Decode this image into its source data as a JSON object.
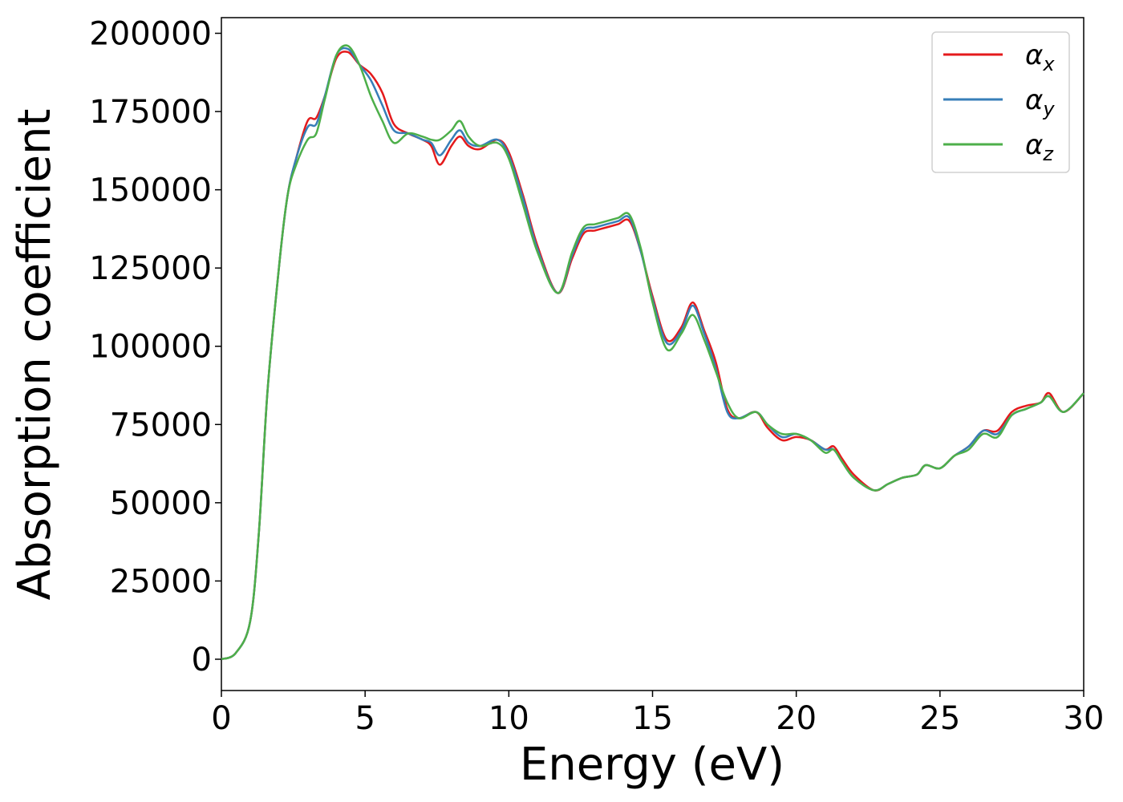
{
  "chart_data": {
    "type": "line",
    "title": "",
    "xlabel": "Energy (eV)",
    "ylabel": "Absorption coefficient",
    "xlim": [
      0,
      30
    ],
    "ylim": [
      -10000,
      205000
    ],
    "x_ticks": [
      "0",
      "5",
      "10",
      "15",
      "20",
      "25",
      "30"
    ],
    "y_ticks": [
      "0",
      "25000",
      "50000",
      "75000",
      "100000",
      "125000",
      "150000",
      "175000",
      "200000"
    ],
    "grid": false,
    "legend_position": "top-right",
    "x": [
      0,
      0.5,
      1.0,
      1.3,
      1.6,
      2.0,
      2.3,
      2.6,
      3.0,
      3.3,
      3.6,
      4.0,
      4.4,
      4.8,
      5.2,
      5.6,
      6.0,
      6.5,
      7.0,
      7.3,
      7.6,
      8.0,
      8.3,
      8.6,
      9.0,
      9.6,
      10.0,
      10.5,
      11.0,
      11.7,
      12.2,
      12.6,
      13.0,
      13.4,
      13.8,
      14.2,
      14.6,
      15.0,
      15.5,
      16.0,
      16.4,
      16.8,
      17.2,
      17.6,
      18.0,
      18.6,
      19.0,
      19.5,
      20.0,
      20.5,
      21.0,
      21.3,
      21.6,
      22.0,
      22.7,
      23.2,
      23.7,
      24.2,
      24.5,
      25.0,
      25.5,
      26.0,
      26.5,
      27.0,
      27.5,
      28.0,
      28.5,
      28.8,
      29.3,
      30.0
    ],
    "series": [
      {
        "name": "α",
        "subscript": "x",
        "color": "#e41a1c",
        "values": [
          0,
          2000,
          12000,
          40000,
          85000,
          125000,
          148000,
          160000,
          172000,
          173000,
          180000,
          192000,
          194000,
          190000,
          187000,
          181000,
          171000,
          168000,
          166000,
          164000,
          158000,
          164000,
          167000,
          164000,
          163000,
          166000,
          162000,
          148000,
          132000,
          117000,
          128000,
          136000,
          137000,
          138000,
          139000,
          140000,
          130000,
          116000,
          102000,
          106000,
          114000,
          105000,
          95000,
          80000,
          77000,
          79000,
          74000,
          70000,
          71000,
          70000,
          67000,
          68000,
          64000,
          59000,
          54000,
          56000,
          58000,
          59000,
          62000,
          61000,
          65000,
          68000,
          73000,
          73000,
          79000,
          81000,
          82000,
          85000,
          79000,
          85000
        ]
      },
      {
        "name": "α",
        "subscript": "y",
        "color": "#377eb8",
        "values": [
          0,
          2000,
          12000,
          40000,
          85000,
          125000,
          148000,
          160000,
          170000,
          171000,
          180000,
          193000,
          195000,
          190000,
          185000,
          177000,
          169000,
          168000,
          166000,
          165000,
          161000,
          166000,
          169000,
          165000,
          164000,
          166000,
          161000,
          147000,
          131000,
          117000,
          129000,
          137000,
          138000,
          139000,
          140000,
          141000,
          130000,
          115000,
          101000,
          105000,
          113000,
          104000,
          93000,
          79000,
          77000,
          79000,
          75000,
          71000,
          72000,
          70000,
          67000,
          67000,
          63000,
          58000,
          54000,
          56000,
          58000,
          59000,
          62000,
          61000,
          65000,
          68000,
          73000,
          72000,
          78000,
          80000,
          82000,
          84000,
          79000,
          85000
        ]
      },
      {
        "name": "α",
        "subscript": "z",
        "color": "#4daf4a",
        "values": [
          0,
          2000,
          12000,
          40000,
          85000,
          125000,
          148000,
          158000,
          166000,
          168000,
          179000,
          193000,
          196000,
          190000,
          180000,
          172000,
          165000,
          168000,
          167000,
          166000,
          166000,
          169000,
          172000,
          167000,
          164000,
          165000,
          160000,
          145000,
          130000,
          117000,
          130000,
          138000,
          139000,
          140000,
          141000,
          142000,
          131000,
          114000,
          99000,
          104000,
          110000,
          102000,
          92000,
          82000,
          77000,
          79000,
          75000,
          72000,
          72000,
          70000,
          66000,
          67000,
          63000,
          58000,
          54000,
          56000,
          58000,
          59000,
          62000,
          61000,
          65000,
          67000,
          72000,
          71000,
          78000,
          80000,
          82000,
          84000,
          79000,
          85000
        ]
      }
    ]
  }
}
